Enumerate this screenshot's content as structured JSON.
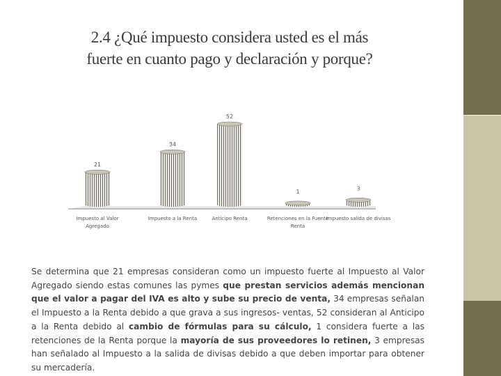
{
  "slide": {
    "title_line1": "2.4 ¿Qué impuesto considera usted es el más",
    "title_line2": "fuerte en cuanto pago y declaración y porque?",
    "paragraph": [
      {
        "text": "Se determina que 21 empresas consideran como un impuesto fuerte al Impuesto al Valor Agregado siendo estas comunes las pymes ",
        "bold": false
      },
      {
        "text": "que prestan servicios además mencionan que el valor a pagar del IVA es alto y sube su precio de venta,",
        "bold": true
      },
      {
        "text": " 34 empresas señalan el Impuesto a la Renta debido a que grava a sus ingresos- ventas, 52 consideran al Anticipo a la Renta debido al ",
        "bold": false
      },
      {
        "text": "cambio de fórmulas para su cálculo,",
        "bold": true
      },
      {
        "text": " 1 considera fuerte a las retenciones de la Renta porque la ",
        "bold": false
      },
      {
        "text": "mayoría de sus proveedores lo retinen,",
        "bold": true
      },
      {
        "text": " 3 empresas han señalado al Impuesto a la salida de divisas debido a que deben importar para obtener su mercadería.",
        "bold": false
      }
    ]
  },
  "colors": {
    "accent_dark": "#726f4f",
    "accent_light": "#c9c6a7",
    "bar_fill": "#ece9e0",
    "bar_stripe": "#6a6a6a"
  },
  "chart_data": {
    "type": "bar",
    "style": "3d-cylinder",
    "categories": [
      "Impuesto al Valor Agregado",
      "Impuesto a la Renta",
      "Anticipo Renta",
      "Retenciones en la Fuente Renta",
      "Impuesto salida de divisas"
    ],
    "values": [
      21,
      34,
      52,
      1,
      3
    ],
    "data_labels": [
      "21",
      "34",
      "52",
      "1",
      "3"
    ],
    "ylim": [
      0,
      52
    ],
    "grid": false,
    "legend": "none"
  }
}
